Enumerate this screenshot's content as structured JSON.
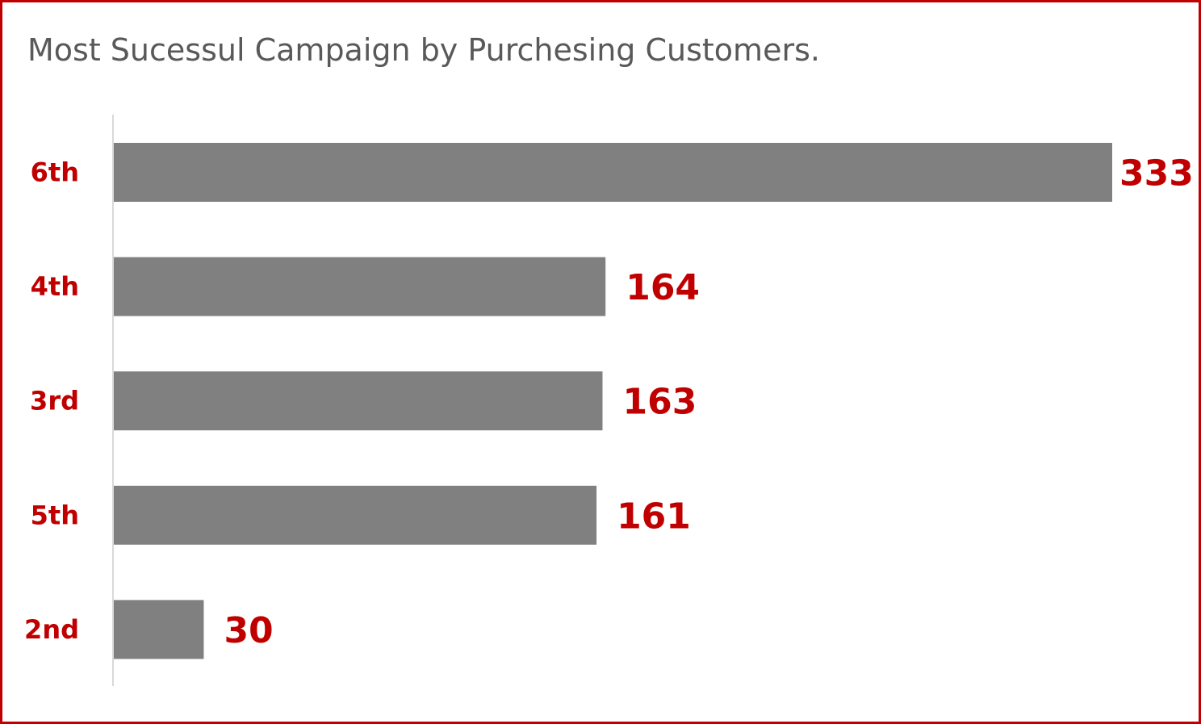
{
  "chart_data": {
    "type": "bar",
    "orientation": "horizontal",
    "title": "Most Sucessul Campaign by Purchesing Customers.",
    "categories": [
      "6th",
      "4th",
      "3rd",
      "5th",
      "2nd"
    ],
    "values": [
      333,
      164,
      163,
      161,
      30
    ],
    "xlabel": "",
    "ylabel": "",
    "xlim": [
      0,
      333
    ],
    "grid": false,
    "legend": "none",
    "colors": {
      "bar": "#808080",
      "label": "#c00000",
      "border": "#c00000",
      "axis": "#d9d9d9",
      "title": "#595959"
    }
  }
}
